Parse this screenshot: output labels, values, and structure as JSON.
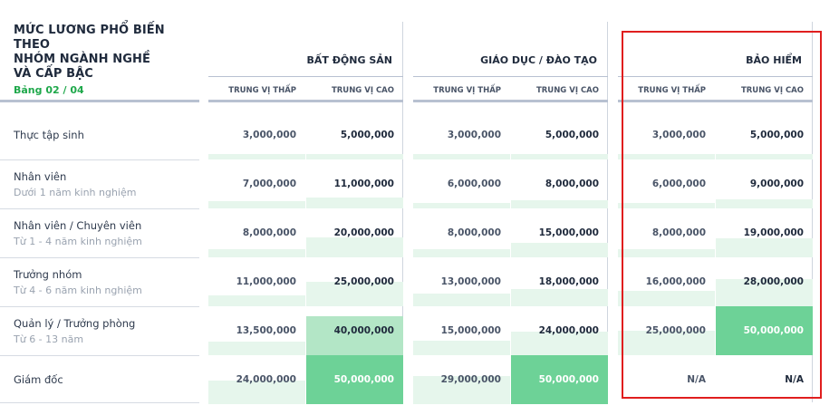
{
  "header": {
    "title_lines": [
      "MỨC LƯƠNG PHỔ BIẾN THEO",
      "NHÓM NGÀNH NGHỀ",
      "VÀ CẤP BẬC"
    ],
    "subtitle": "Bảng 02 / 04"
  },
  "columns": {
    "low": "TRUNG VỊ THẤP",
    "high": "TRUNG VỊ CAO"
  },
  "rows": [
    {
      "label": "Thực tập sinh",
      "sub": ""
    },
    {
      "label": "Nhân viên",
      "sub": "Dưới 1 năm kinh nghiệm"
    },
    {
      "label": "Nhân viên / Chuyên viên",
      "sub": "Từ 1 - 4 năm kinh nghiệm"
    },
    {
      "label": "Trưởng nhóm",
      "sub": "Từ 4 - 6 năm kinh nghiệm"
    },
    {
      "label": "Quản lý / Trưởng phòng",
      "sub": "Từ 6 - 13 năm"
    },
    {
      "label": "Giám đốc",
      "sub": ""
    }
  ],
  "sectors": [
    {
      "name": "BẤT ĐỘNG SẢN",
      "low": [
        "3,000,000",
        "7,000,000",
        "8,000,000",
        "11,000,000",
        "13,500,000",
        "24,000,000"
      ],
      "high": [
        "5,000,000",
        "11,000,000",
        "20,000,000",
        "25,000,000",
        "40,000,000",
        "50,000,000"
      ],
      "low_level": [
        0.06,
        0.14,
        0.16,
        0.22,
        0.27,
        0.48
      ],
      "high_level": [
        0.1,
        0.22,
        0.4,
        0.5,
        0.8,
        1.0
      ]
    },
    {
      "name": "GIÁO DỤC / ĐÀO TẠO",
      "low": [
        "3,000,000",
        "6,000,000",
        "8,000,000",
        "13,000,000",
        "15,000,000",
        "29,000,000"
      ],
      "high": [
        "5,000,000",
        "8,000,000",
        "15,000,000",
        "18,000,000",
        "24,000,000",
        "50,000,000"
      ],
      "low_level": [
        0.06,
        0.12,
        0.16,
        0.26,
        0.3,
        0.58
      ],
      "high_level": [
        0.1,
        0.16,
        0.3,
        0.36,
        0.48,
        1.0
      ]
    },
    {
      "name": "BẢO HIỂM",
      "low": [
        "3,000,000",
        "6,000,000",
        "8,000,000",
        "16,000,000",
        "25,000,000",
        "N/A"
      ],
      "high": [
        "5,000,000",
        "9,000,000",
        "19,000,000",
        "28,000,000",
        "50,000,000",
        "N/A"
      ],
      "low_level": [
        0.06,
        0.12,
        0.16,
        0.32,
        0.5,
        0
      ],
      "high_level": [
        0.1,
        0.18,
        0.38,
        0.56,
        1.0,
        0
      ]
    }
  ],
  "colors": {
    "fill_light": "#e6f6ec",
    "fill_mid": "#b3e6c6",
    "fill_strong": "#6dd297",
    "highlight": "#e01e1e"
  }
}
